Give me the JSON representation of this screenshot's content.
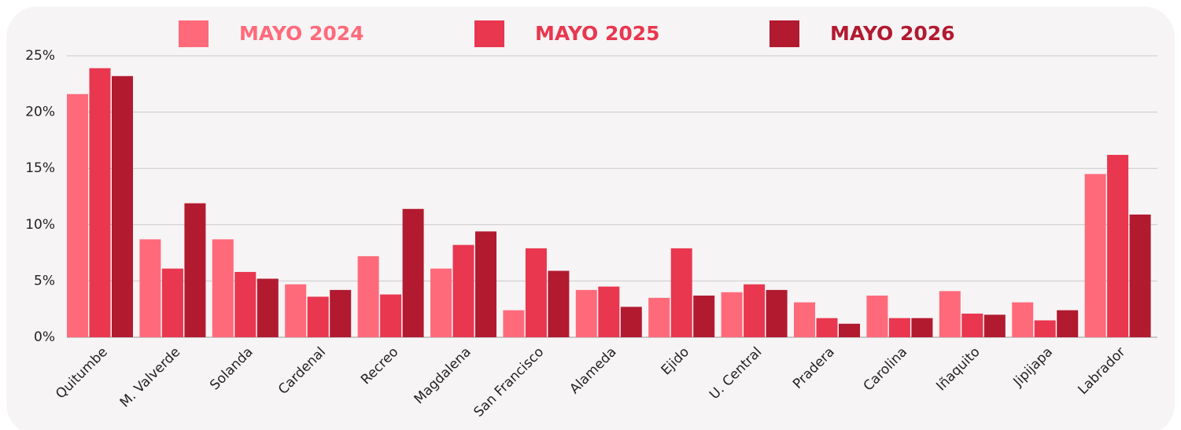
{
  "chart_data": {
    "type": "bar",
    "categories": [
      "Quitumbe",
      "M. Valverde",
      "Solanda",
      "Cardenal",
      "Recreo",
      "Magdalena",
      "San Francisco",
      "Alameda",
      "Ejido",
      "U. Central",
      "Pradera",
      "Carolina",
      "Iñaquito",
      "Jipijapa",
      "Labrador"
    ],
    "series": [
      {
        "name": "MAYO 2024",
        "color": "#ff6a7b",
        "values": [
          21.6,
          8.7,
          8.7,
          4.7,
          7.2,
          6.1,
          2.4,
          4.2,
          3.5,
          4.0,
          3.1,
          3.7,
          4.1,
          3.1,
          14.5
        ]
      },
      {
        "name": "MAYO 2025",
        "color": "#e8374f",
        "values": [
          23.9,
          6.1,
          5.8,
          3.6,
          3.8,
          8.2,
          7.9,
          4.5,
          7.9,
          4.7,
          1.7,
          1.7,
          2.1,
          1.5,
          16.2
        ]
      },
      {
        "name": "MAYO 2026",
        "color": "#b21a30",
        "values": [
          23.2,
          11.9,
          5.2,
          4.2,
          11.4,
          9.4,
          5.9,
          2.7,
          3.7,
          4.2,
          1.2,
          1.7,
          2.0,
          2.4,
          10.9
        ]
      }
    ],
    "ylim": [
      0,
      25
    ],
    "yticks": [
      {
        "value": 0,
        "label": "0%"
      },
      {
        "value": 5,
        "label": "5%"
      },
      {
        "value": 10,
        "label": "10%"
      },
      {
        "value": 15,
        "label": "15%"
      },
      {
        "value": 20,
        "label": "20%"
      },
      {
        "value": 25,
        "label": "25%"
      }
    ],
    "grid": true,
    "legend": "top"
  }
}
